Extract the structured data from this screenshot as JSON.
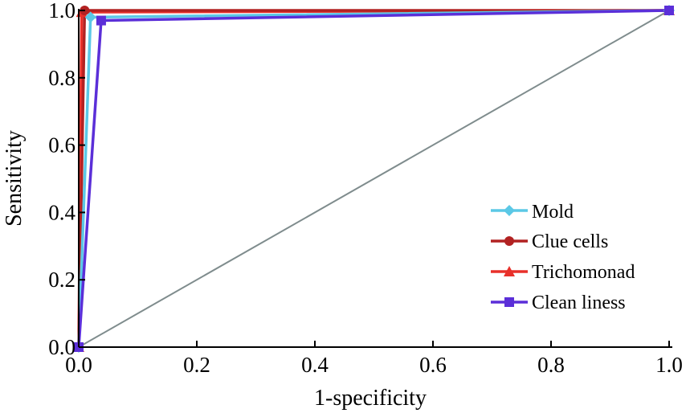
{
  "chart_data": {
    "type": "line",
    "title": "",
    "xlabel": "1-specificity",
    "ylabel": "Sensitivity",
    "xlim": [
      0,
      1
    ],
    "ylim": [
      0,
      1
    ],
    "xticks": [
      0.0,
      0.2,
      0.4,
      0.6,
      0.8,
      1.0
    ],
    "yticks": [
      0.0,
      0.2,
      0.4,
      0.6,
      0.8,
      1.0
    ],
    "xtick_labels": [
      "0.0",
      "0.2",
      "0.4",
      "0.6",
      "0.8",
      "1.0"
    ],
    "ytick_labels": [
      "0.0",
      "0.2",
      "0.4",
      "0.6",
      "0.8",
      "1.0"
    ],
    "grid": false,
    "legend_position": "bottom-right",
    "reference_line": {
      "x": [
        0,
        1
      ],
      "y": [
        0,
        1
      ],
      "color": "#7f8c8d"
    },
    "series": [
      {
        "name": "Mold",
        "marker": "diamond",
        "color": "#5bc8e6",
        "x": [
          0,
          0.02,
          1
        ],
        "y": [
          0,
          0.98,
          1
        ]
      },
      {
        "name": "Clue cells",
        "marker": "circle",
        "color": "#b22222",
        "x": [
          0,
          0.01,
          1
        ],
        "y": [
          0,
          1.0,
          1
        ]
      },
      {
        "name": "Trichomonad",
        "marker": "triangle",
        "color": "#e8302a",
        "x": [
          0,
          0.005,
          1
        ],
        "y": [
          0,
          0.995,
          1
        ]
      },
      {
        "name": "Clean liness",
        "marker": "square",
        "color": "#5b2fd8",
        "x": [
          0,
          0.038,
          1
        ],
        "y": [
          0,
          0.97,
          1
        ]
      }
    ]
  }
}
